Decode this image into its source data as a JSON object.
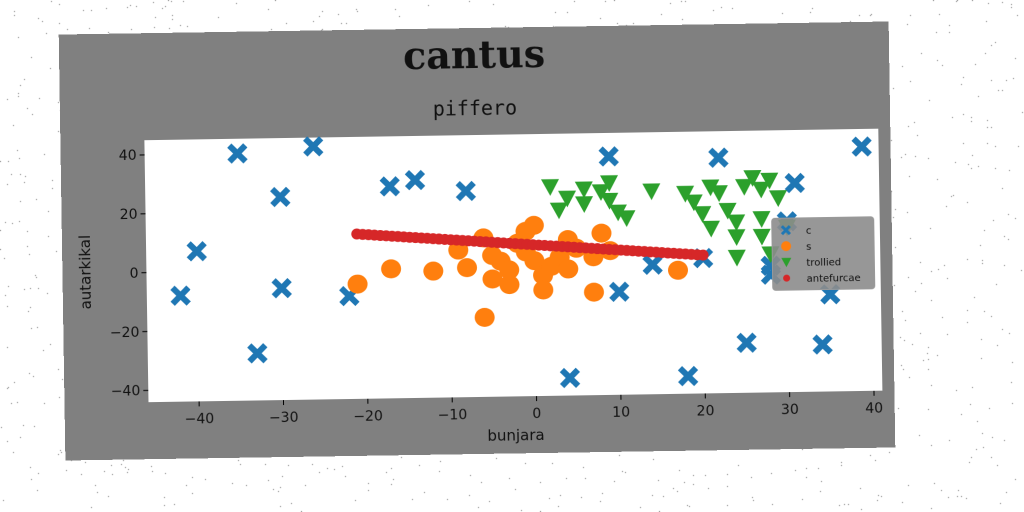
{
  "chart_data": {
    "type": "scatter",
    "title": "cantus",
    "subtitle": "piffero",
    "xlabel": "bunjara",
    "ylabel": "autarkikal",
    "xlim": [
      -46,
      41
    ],
    "ylim": [
      -44,
      45
    ],
    "xticks": [
      -40,
      -30,
      -20,
      -10,
      0,
      10,
      20,
      30,
      40
    ],
    "yticks": [
      -40,
      -20,
      0,
      20,
      40
    ],
    "legend_position": "right",
    "series": [
      {
        "name": "c",
        "marker": "x",
        "color": "#1f77b4",
        "points": [
          [
            -35,
            40
          ],
          [
            -26,
            42
          ],
          [
            -30,
            25
          ],
          [
            -40,
            7
          ],
          [
            -42,
            -8
          ],
          [
            -30,
            -6
          ],
          [
            -33,
            -28
          ],
          [
            -22,
            -9
          ],
          [
            -17,
            28
          ],
          [
            -14,
            30
          ],
          [
            -8,
            26
          ],
          [
            9,
            37
          ],
          [
            22,
            36
          ],
          [
            39,
            39
          ],
          [
            31,
            27
          ],
          [
            30,
            14
          ],
          [
            14,
            0
          ],
          [
            10,
            -9
          ],
          [
            4,
            -38
          ],
          [
            18,
            -38
          ],
          [
            20,
            2
          ],
          [
            28,
            -4
          ],
          [
            28,
            -1
          ],
          [
            35,
            -11
          ],
          [
            25,
            -27
          ],
          [
            34,
            -28
          ]
        ]
      },
      {
        "name": "s",
        "marker": "o",
        "color": "#ff7f0e",
        "points": [
          [
            -21,
            -5
          ],
          [
            -17,
            0
          ],
          [
            -12,
            -1
          ],
          [
            -8,
            0
          ],
          [
            -9,
            6
          ],
          [
            -6,
            10
          ],
          [
            -5,
            4
          ],
          [
            -4,
            2
          ],
          [
            -3,
            -1
          ],
          [
            -5,
            -4
          ],
          [
            -3,
            -6
          ],
          [
            -2,
            8
          ],
          [
            -1,
            12
          ],
          [
            0,
            14
          ],
          [
            -1,
            5
          ],
          [
            0,
            2
          ],
          [
            1,
            -3
          ],
          [
            1,
            -8
          ],
          [
            2,
            0
          ],
          [
            3,
            3
          ],
          [
            4,
            -1
          ],
          [
            4,
            9
          ],
          [
            5,
            6
          ],
          [
            7,
            3
          ],
          [
            8,
            11
          ],
          [
            9,
            5
          ],
          [
            7,
            -9
          ],
          [
            -6,
            -17
          ],
          [
            17,
            -2
          ]
        ]
      },
      {
        "name": "trollied",
        "marker": "v",
        "color": "#2ca02c",
        "points": [
          [
            2,
            27
          ],
          [
            4,
            23
          ],
          [
            3,
            19
          ],
          [
            6,
            26
          ],
          [
            6,
            21
          ],
          [
            8,
            25
          ],
          [
            9,
            28
          ],
          [
            9,
            22
          ],
          [
            10,
            18
          ],
          [
            11,
            16
          ],
          [
            14,
            25
          ],
          [
            18,
            24
          ],
          [
            21,
            26
          ],
          [
            19,
            21
          ],
          [
            20,
            17
          ],
          [
            22,
            24
          ],
          [
            23,
            18
          ],
          [
            24,
            14
          ],
          [
            21,
            12
          ],
          [
            24,
            9
          ],
          [
            25,
            26
          ],
          [
            26,
            29
          ],
          [
            27,
            25
          ],
          [
            28,
            28
          ],
          [
            29,
            22
          ],
          [
            27,
            15
          ],
          [
            27,
            9
          ],
          [
            28,
            3
          ],
          [
            30,
            12
          ],
          [
            24,
            2
          ]
        ]
      },
      {
        "name": "antefurcae",
        "marker": "o-small",
        "color": "#d62728",
        "line": {
          "x_from": -21,
          "x_to": 20,
          "y_from": 12,
          "y_to": 3,
          "count": 60
        }
      }
    ]
  }
}
